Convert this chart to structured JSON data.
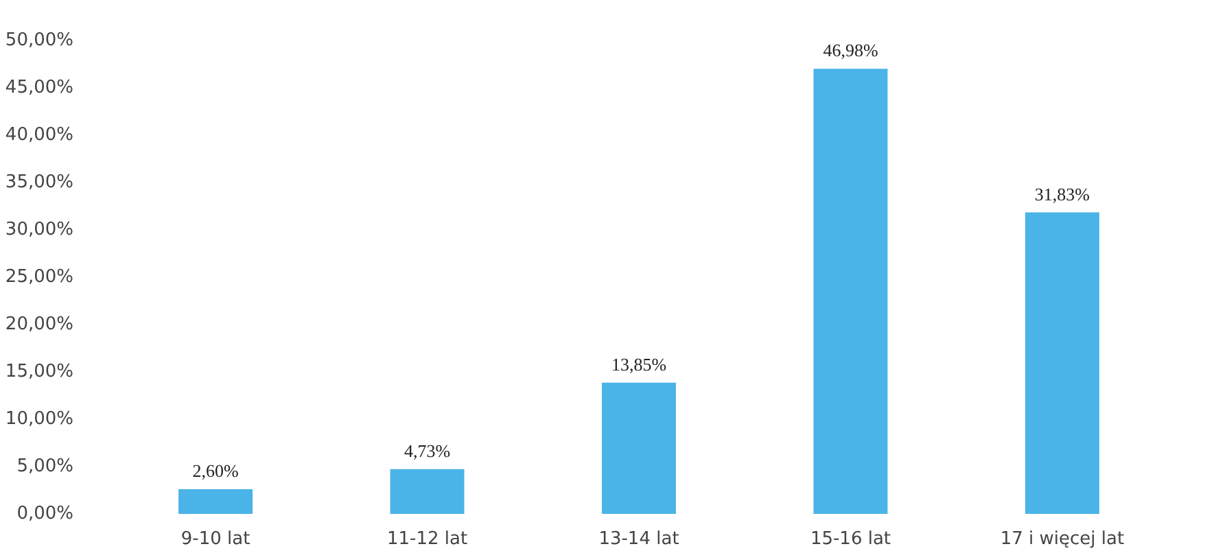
{
  "chart_data": {
    "type": "bar",
    "categories": [
      "9-10 lat",
      "11-12 lat",
      "13-14 lat",
      "15-16 lat",
      "17 i więcej lat"
    ],
    "values": [
      2.6,
      4.73,
      13.85,
      46.98,
      31.83
    ],
    "value_labels": [
      "2,60%",
      "4,73%",
      "13,85%",
      "46,98%",
      "31,83%"
    ],
    "color": "#4ab4e8",
    "ylim": [
      0,
      50
    ],
    "yticks": [
      {
        "value": 0,
        "label": "0,00%"
      },
      {
        "value": 5,
        "label": "5,00%"
      },
      {
        "value": 10,
        "label": "10,00%"
      },
      {
        "value": 15,
        "label": "15,00%"
      },
      {
        "value": 20,
        "label": "20,00%"
      },
      {
        "value": 25,
        "label": "25,00%"
      },
      {
        "value": 30,
        "label": "30,00%"
      },
      {
        "value": 35,
        "label": "35,00%"
      },
      {
        "value": 40,
        "label": "40,00%"
      },
      {
        "value": 45,
        "label": "45,00%"
      },
      {
        "value": 50,
        "label": "50,00%"
      }
    ],
    "grid": false
  }
}
